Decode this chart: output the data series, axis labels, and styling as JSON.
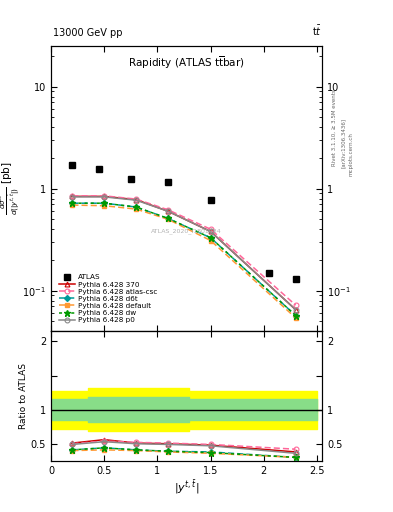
{
  "title_top_left": "13000 GeV pp",
  "title_top_right": "tt",
  "plot_title": "Rapidity (ATLAS t#bar{t}bar)",
  "xlabel": "|y^{t,1}|",
  "ylabel_ratio": "Ratio to ATLAS",
  "watermark": "ATLAS_2020_I1801434",
  "rivet_text": "Rivet 3.1.10, ≥ 3.5M events",
  "arxiv_text": "[arXiv:1306.3436]",
  "mcplots_text": "mcplots.cern.ch",
  "atlas_x": [
    0.2,
    0.45,
    0.75,
    1.1,
    1.5,
    2.05,
    2.3
  ],
  "atlas_y": [
    1.7,
    1.55,
    1.25,
    1.15,
    0.78,
    0.15,
    0.13
  ],
  "mc_x": [
    0.2,
    0.5,
    0.8,
    1.1,
    1.5,
    2.3
  ],
  "py370_y": [
    0.84,
    0.84,
    0.78,
    0.6,
    0.38,
    0.065
  ],
  "py_atcsc_y": [
    0.85,
    0.85,
    0.79,
    0.62,
    0.4,
    0.072
  ],
  "py_d6t_y": [
    0.72,
    0.72,
    0.66,
    0.51,
    0.33,
    0.057
  ],
  "py_def_y": [
    0.69,
    0.68,
    0.63,
    0.5,
    0.31,
    0.054
  ],
  "py_dw_y": [
    0.72,
    0.72,
    0.66,
    0.51,
    0.33,
    0.057
  ],
  "py_p0_y": [
    0.83,
    0.83,
    0.77,
    0.6,
    0.38,
    0.065
  ],
  "ratio_x": [
    0.2,
    0.5,
    0.8,
    1.1,
    1.5,
    2.3
  ],
  "ratio_py370": [
    0.51,
    0.56,
    0.51,
    0.5,
    0.48,
    0.38
  ],
  "ratio_pyatcsc": [
    0.5,
    0.54,
    0.52,
    0.51,
    0.49,
    0.42
  ],
  "ratio_pyd6t": [
    0.41,
    0.44,
    0.41,
    0.39,
    0.38,
    0.3
  ],
  "ratio_pydef": [
    0.4,
    0.41,
    0.4,
    0.38,
    0.36,
    0.3
  ],
  "ratio_pydw": [
    0.41,
    0.44,
    0.41,
    0.39,
    0.37,
    0.3
  ],
  "ratio_pyp0": [
    0.49,
    0.53,
    0.5,
    0.49,
    0.47,
    0.36
  ],
  "atlas_band_edges": [
    0.0,
    0.35,
    0.65,
    0.95,
    1.3,
    1.8,
    2.5
  ],
  "atlas_green_lo": [
    0.85,
    0.82,
    0.82,
    0.82,
    0.85,
    0.85,
    0.85
  ],
  "atlas_green_hi": [
    1.15,
    1.18,
    1.18,
    1.18,
    1.15,
    1.15,
    1.15
  ],
  "atlas_yellow_lo": [
    0.72,
    0.68,
    0.68,
    0.68,
    0.72,
    0.72,
    0.72
  ],
  "atlas_yellow_hi": [
    1.28,
    1.32,
    1.32,
    1.32,
    1.28,
    1.28,
    1.28
  ],
  "color_py370": "#cc0000",
  "color_pyatcsc": "#ff6699",
  "color_pyd6t": "#009999",
  "color_pydef": "#ff9933",
  "color_pydw": "#009900",
  "color_pyp0": "#888888",
  "ylim_main": [
    0.04,
    25
  ],
  "ylim_ratio": [
    0.25,
    2.15
  ],
  "xlim": [
    0.0,
    2.55
  ],
  "xticks": [
    0,
    0.5,
    1.0,
    1.5,
    2.0,
    2.5
  ]
}
